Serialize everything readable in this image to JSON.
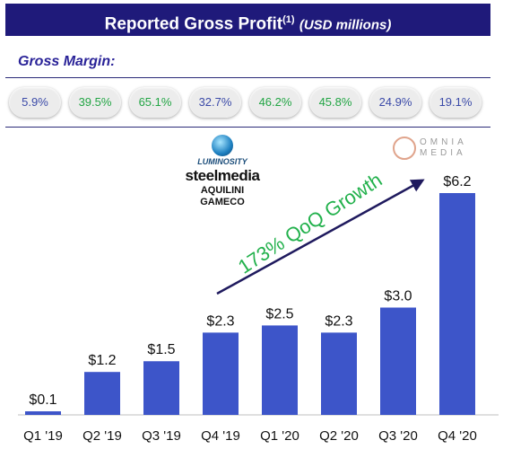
{
  "header": {
    "title": "Reported Gross Profit",
    "footnote": "(1)",
    "unit": "(USD millions)"
  },
  "gross_margin": {
    "label": "Gross Margin:",
    "values": [
      "5.9%",
      "39.5%",
      "65.1%",
      "32.7%",
      "46.2%",
      "45.8%",
      "24.9%",
      "19.1%"
    ],
    "colors": [
      "#3b4aa8",
      "#22a544",
      "#22a544",
      "#3b4aa8",
      "#22a544",
      "#22a544",
      "#3b4aa8",
      "#3b4aa8"
    ]
  },
  "annotation": {
    "growth_text": "173% QoQ Growth"
  },
  "logos": {
    "luminosity": "LUMINOSITY",
    "steelmedia": "steelmedia",
    "aquilini": "AQUILINI",
    "gameco": "GAMECO",
    "omnia": "OMNIA",
    "media": "MEDIA"
  },
  "chart_data": {
    "type": "bar",
    "categories": [
      "Q1 '19",
      "Q2 '19",
      "Q3 '19",
      "Q4 '19",
      "Q1 '20",
      "Q2 '20",
      "Q3 '20",
      "Q4 '20"
    ],
    "values": [
      0.1,
      1.2,
      1.5,
      2.3,
      2.5,
      2.3,
      3.0,
      6.2
    ],
    "data_labels": [
      "$0.1",
      "$1.2",
      "$1.5",
      "$2.3",
      "$2.5",
      "$2.3",
      "$3.0",
      "$6.2"
    ],
    "bar_color": "#3d55c9",
    "ylim": [
      0,
      6.2
    ],
    "grid": false,
    "legend": "none"
  }
}
